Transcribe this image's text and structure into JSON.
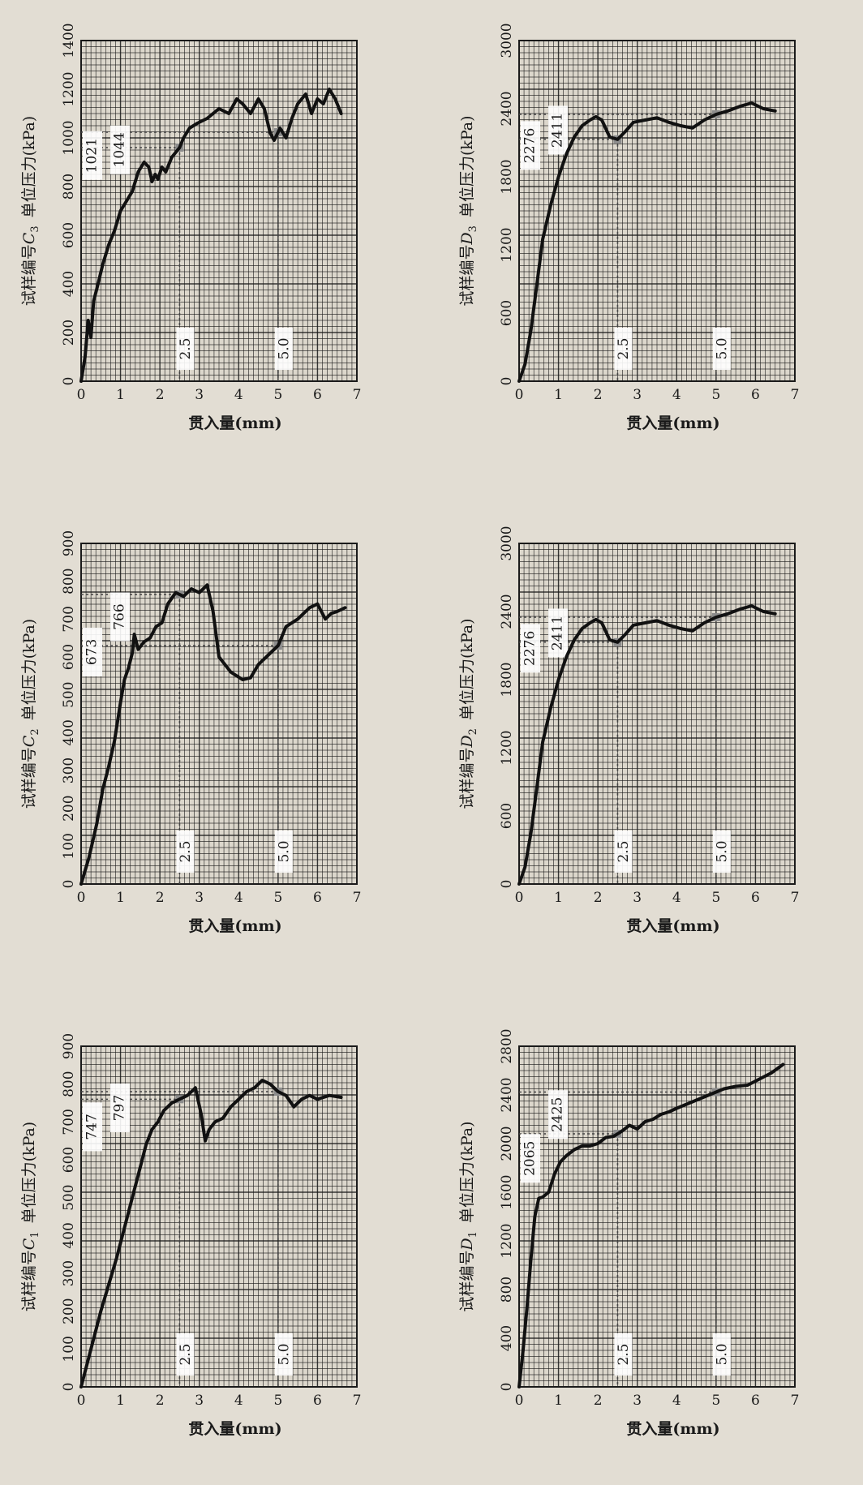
{
  "colors": {
    "background": "#e2ddd3",
    "grid": "#1a1a1a",
    "curve": "#111111",
    "marker": "#8c8c8c"
  },
  "chart_data": [
    {
      "id": "C3",
      "type": "line",
      "ylabel_prefix": "试样编号",
      "ylabel_letter": "C",
      "ylabel_subscript": "3",
      "ylabel_suffix": "单位压力(kPa)",
      "xlabel": "贯入量(mm)",
      "xlim": [
        0,
        7
      ],
      "ylim": [
        0,
        1400
      ],
      "xticks": [
        0,
        1,
        2,
        3,
        4,
        5,
        6,
        7
      ],
      "yticks": [
        0,
        200,
        400,
        600,
        800,
        1000,
        1200,
        1400
      ],
      "grid": true,
      "annotations": {
        "x_markers": [
          "2.5",
          "5.0"
        ],
        "y_labels": [
          "1021",
          "1044"
        ],
        "y_values": [
          1021,
          1044
        ]
      },
      "x": [
        0,
        0.1,
        0.18,
        0.25,
        0.32,
        0.4,
        0.55,
        0.7,
        0.85,
        1.0,
        1.15,
        1.3,
        1.45,
        1.6,
        1.72,
        1.8,
        1.88,
        1.95,
        2.05,
        2.15,
        2.3,
        2.5,
        2.6,
        2.75,
        2.95,
        3.2,
        3.5,
        3.75,
        3.95,
        4.1,
        4.3,
        4.5,
        4.65,
        4.8,
        4.9,
        5.05,
        5.2,
        5.35,
        5.5,
        5.7,
        5.85,
        6.0,
        6.15,
        6.3,
        6.45,
        6.6
      ],
      "y": [
        0,
        100,
        250,
        180,
        330,
        380,
        480,
        560,
        620,
        700,
        740,
        780,
        860,
        900,
        880,
        820,
        850,
        830,
        880,
        860,
        920,
        960,
        1000,
        1040,
        1060,
        1080,
        1120,
        1100,
        1160,
        1140,
        1100,
        1160,
        1120,
        1020,
        990,
        1040,
        1000,
        1080,
        1140,
        1180,
        1100,
        1160,
        1140,
        1200,
        1160,
        1100
      ]
    },
    {
      "id": "D3",
      "type": "line",
      "ylabel_prefix": "试样编号",
      "ylabel_letter": "D",
      "ylabel_subscript": "3",
      "ylabel_suffix": "单位压力(kPa)",
      "xlabel": "贯入量(mm)",
      "xlim": [
        0,
        7
      ],
      "ylim": [
        0,
        3000
      ],
      "xticks": [
        0,
        1,
        2,
        3,
        4,
        5,
        6,
        7
      ],
      "yticks": [
        0,
        600,
        1200,
        1800,
        2400,
        3000
      ],
      "grid": true,
      "annotations": {
        "x_markers": [
          "2.5",
          "5.0"
        ],
        "y_labels": [
          "2276",
          "2411"
        ],
        "y_values": [
          2276,
          2411
        ]
      },
      "x": [
        0,
        0.15,
        0.3,
        0.45,
        0.6,
        0.8,
        1.0,
        1.2,
        1.4,
        1.6,
        1.8,
        1.95,
        2.1,
        2.3,
        2.5,
        2.7,
        2.9,
        3.2,
        3.5,
        3.8,
        4.1,
        4.4,
        4.7,
        5.0,
        5.3,
        5.6,
        5.9,
        6.2,
        6.5
      ],
      "y": [
        0,
        150,
        450,
        850,
        1250,
        1550,
        1800,
        2000,
        2150,
        2250,
        2300,
        2330,
        2300,
        2150,
        2130,
        2200,
        2280,
        2300,
        2320,
        2280,
        2250,
        2230,
        2300,
        2350,
        2380,
        2420,
        2450,
        2400,
        2380
      ]
    },
    {
      "id": "C2",
      "type": "line",
      "ylabel_prefix": "试样编号",
      "ylabel_letter": "C",
      "ylabel_subscript": "2",
      "ylabel_suffix": "单位压力(kPa)",
      "xlabel": "贯入量(mm)",
      "xlim": [
        0,
        7
      ],
      "ylim": [
        0,
        900
      ],
      "xticks": [
        0,
        1,
        2,
        3,
        4,
        5,
        6,
        7
      ],
      "yticks": [
        0,
        100,
        200,
        300,
        400,
        500,
        600,
        700,
        800,
        900
      ],
      "grid": true,
      "annotations": {
        "x_markers": [
          "2.5",
          "5.0"
        ],
        "y_labels": [
          "673",
          "766"
        ],
        "y_values": [
          673,
          766
        ]
      },
      "x": [
        0,
        0.2,
        0.4,
        0.55,
        0.7,
        0.85,
        1.0,
        1.1,
        1.2,
        1.3,
        1.35,
        1.45,
        1.6,
        1.75,
        1.9,
        2.05,
        2.2,
        2.4,
        2.6,
        2.8,
        3.0,
        3.2,
        3.35,
        3.5,
        3.8,
        4.1,
        4.3,
        4.5,
        4.7,
        5.0,
        5.2,
        5.5,
        5.8,
        6.0,
        6.2,
        6.35,
        6.5,
        6.7
      ],
      "y": [
        0,
        70,
        160,
        250,
        310,
        380,
        480,
        540,
        570,
        610,
        660,
        620,
        640,
        650,
        680,
        690,
        740,
        770,
        760,
        780,
        770,
        790,
        720,
        600,
        560,
        540,
        545,
        580,
        600,
        630,
        680,
        700,
        730,
        740,
        700,
        715,
        720,
        730
      ]
    },
    {
      "id": "D2",
      "type": "line",
      "ylabel_prefix": "试样编号",
      "ylabel_letter": "D",
      "ylabel_subscript": "2",
      "ylabel_suffix": "单位压力(kPa)",
      "xlabel": "贯入量(mm)",
      "xlim": [
        0,
        7
      ],
      "ylim": [
        0,
        3000
      ],
      "xticks": [
        0,
        1,
        2,
        3,
        4,
        5,
        6,
        7
      ],
      "yticks": [
        0,
        600,
        1200,
        1800,
        2400,
        3000
      ],
      "grid": true,
      "annotations": {
        "x_markers": [
          "2.5",
          "5.0"
        ],
        "y_labels": [
          "2276",
          "2411"
        ],
        "y_values": [
          2276,
          2411
        ]
      },
      "x": [
        0,
        0.15,
        0.3,
        0.45,
        0.6,
        0.8,
        1.0,
        1.2,
        1.4,
        1.6,
        1.8,
        1.95,
        2.1,
        2.3,
        2.5,
        2.7,
        2.9,
        3.2,
        3.5,
        3.8,
        4.1,
        4.4,
        4.7,
        5.0,
        5.3,
        5.6,
        5.9,
        6.2,
        6.5
      ],
      "y": [
        0,
        150,
        450,
        850,
        1250,
        1550,
        1800,
        2000,
        2150,
        2250,
        2300,
        2330,
        2300,
        2150,
        2130,
        2200,
        2280,
        2300,
        2320,
        2280,
        2250,
        2230,
        2300,
        2350,
        2380,
        2420,
        2450,
        2400,
        2380
      ]
    },
    {
      "id": "C1",
      "type": "line",
      "ylabel_prefix": "试样编号",
      "ylabel_letter": "C",
      "ylabel_subscript": "1",
      "ylabel_suffix": "单位压力(kPa)",
      "xlabel": "贯入量(mm)",
      "xlim": [
        0,
        7
      ],
      "ylim": [
        0,
        900
      ],
      "xticks": [
        0,
        1,
        2,
        3,
        4,
        5,
        6,
        7
      ],
      "yticks": [
        0,
        100,
        200,
        300,
        400,
        500,
        600,
        700,
        800,
        900
      ],
      "grid": true,
      "annotations": {
        "x_markers": [
          "2.5",
          "5.0"
        ],
        "y_labels": [
          "747",
          "797"
        ],
        "y_values": [
          747,
          797
        ]
      },
      "x": [
        0,
        0.15,
        0.3,
        0.5,
        0.7,
        0.9,
        1.1,
        1.3,
        1.5,
        1.65,
        1.8,
        1.95,
        2.1,
        2.3,
        2.5,
        2.7,
        2.9,
        3.05,
        3.15,
        3.25,
        3.4,
        3.6,
        3.8,
        4.0,
        4.2,
        4.4,
        4.6,
        4.8,
        5.0,
        5.2,
        5.4,
        5.6,
        5.8,
        6.0,
        6.3,
        6.6
      ],
      "y": [
        0,
        60,
        120,
        200,
        270,
        340,
        420,
        500,
        580,
        640,
        680,
        700,
        730,
        750,
        760,
        770,
        790,
        720,
        650,
        680,
        700,
        710,
        740,
        760,
        780,
        790,
        810,
        800,
        780,
        770,
        740,
        760,
        770,
        760,
        770,
        765
      ]
    },
    {
      "id": "D1",
      "type": "line",
      "ylabel_prefix": "试样编号",
      "ylabel_letter": "D",
      "ylabel_subscript": "1",
      "ylabel_suffix": "单位压力(kPa)",
      "xlabel": "贯入量(mm)",
      "xlim": [
        0,
        7
      ],
      "ylim": [
        0,
        2800
      ],
      "xticks": [
        0,
        1,
        2,
        3,
        4,
        5,
        6,
        7
      ],
      "yticks": [
        0,
        400,
        800,
        1200,
        1600,
        2000,
        2400,
        2800
      ],
      "grid": true,
      "annotations": {
        "x_markers": [
          "2.5",
          "5.0"
        ],
        "y_labels": [
          "2065",
          "2425"
        ],
        "y_values": [
          2065,
          2425
        ]
      },
      "x": [
        0,
        0.1,
        0.2,
        0.3,
        0.4,
        0.5,
        0.6,
        0.75,
        0.9,
        1.05,
        1.2,
        1.4,
        1.6,
        1.8,
        2.0,
        2.2,
        2.4,
        2.6,
        2.8,
        3.0,
        3.2,
        3.4,
        3.6,
        3.8,
        4.0,
        4.3,
        4.6,
        4.9,
        5.2,
        5.5,
        5.8,
        6.1,
        6.4,
        6.7
      ],
      "y": [
        0,
        300,
        650,
        1050,
        1400,
        1550,
        1560,
        1600,
        1750,
        1850,
        1900,
        1950,
        1980,
        1980,
        2000,
        2050,
        2060,
        2100,
        2150,
        2120,
        2180,
        2200,
        2240,
        2260,
        2290,
        2330,
        2370,
        2410,
        2450,
        2470,
        2480,
        2530,
        2580,
        2650
      ]
    }
  ]
}
